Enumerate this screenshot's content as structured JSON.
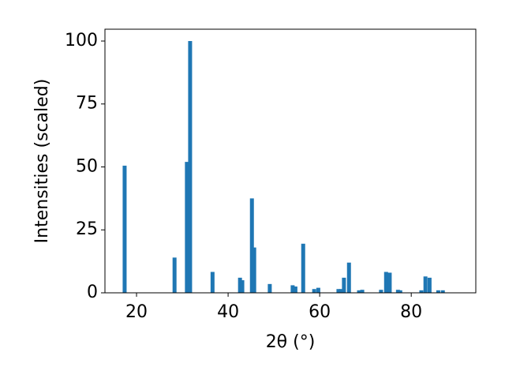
{
  "chart_data": {
    "type": "bar",
    "x_label": "2θ (°)",
    "y_label": "Intensities (scaled)",
    "x": [
      17.4,
      28.3,
      31.0,
      31.7,
      36.6,
      42.6,
      43.1,
      45.2,
      45.7,
      49.1,
      54.1,
      54.7,
      56.4,
      58.8,
      59.7,
      64.1,
      64.7,
      65.3,
      66.4,
      68.6,
      69.3,
      73.4,
      74.5,
      75.3,
      77.1,
      77.6,
      82.2,
      83.1,
      84.0,
      85.9,
      86.9
    ],
    "values": [
      50.5,
      14,
      52,
      100,
      8.3,
      6,
      5,
      37.5,
      18,
      3.5,
      3,
      2.5,
      19.5,
      1.5,
      2,
      1.5,
      1.5,
      6,
      12,
      1,
      1.2,
      1.2,
      8.3,
      8,
      1.2,
      1,
      1,
      6.5,
      6,
      1,
      1
    ],
    "color": "#1f77b4",
    "xlim": [
      13.1,
      94.1
    ],
    "xticks": [
      20,
      40,
      60,
      80
    ],
    "ylim": [
      0,
      104.7
    ],
    "yticks": [
      0,
      25,
      50,
      75,
      100
    ]
  }
}
